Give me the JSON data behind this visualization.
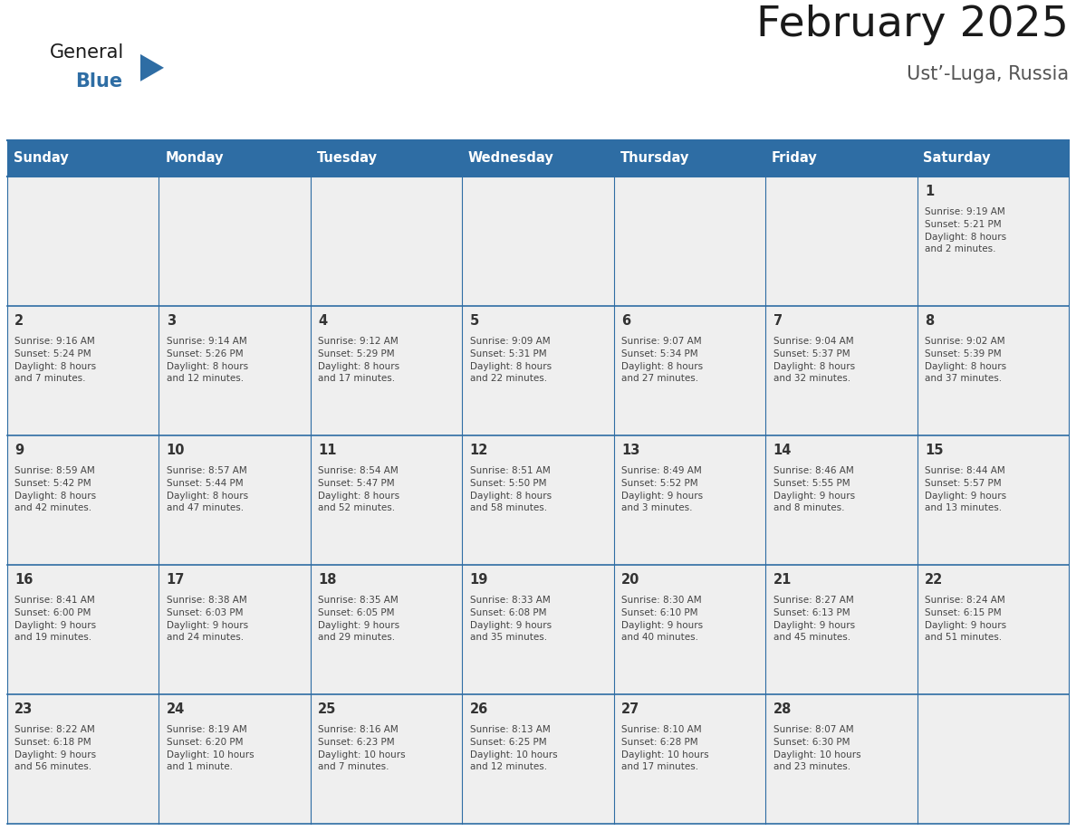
{
  "title": "February 2025",
  "subtitle": "Ust’-Luga, Russia",
  "header_bg": "#2e6da4",
  "header_text": "#ffffff",
  "cell_bg": "#efefef",
  "border_color": "#2e6da4",
  "text_color": "#333333",
  "info_color": "#444444",
  "days_of_week": [
    "Sunday",
    "Monday",
    "Tuesday",
    "Wednesday",
    "Thursday",
    "Friday",
    "Saturday"
  ],
  "weeks": [
    [
      {
        "day": null,
        "info": null
      },
      {
        "day": null,
        "info": null
      },
      {
        "day": null,
        "info": null
      },
      {
        "day": null,
        "info": null
      },
      {
        "day": null,
        "info": null
      },
      {
        "day": null,
        "info": null
      },
      {
        "day": 1,
        "info": "Sunrise: 9:19 AM\nSunset: 5:21 PM\nDaylight: 8 hours\nand 2 minutes."
      }
    ],
    [
      {
        "day": 2,
        "info": "Sunrise: 9:16 AM\nSunset: 5:24 PM\nDaylight: 8 hours\nand 7 minutes."
      },
      {
        "day": 3,
        "info": "Sunrise: 9:14 AM\nSunset: 5:26 PM\nDaylight: 8 hours\nand 12 minutes."
      },
      {
        "day": 4,
        "info": "Sunrise: 9:12 AM\nSunset: 5:29 PM\nDaylight: 8 hours\nand 17 minutes."
      },
      {
        "day": 5,
        "info": "Sunrise: 9:09 AM\nSunset: 5:31 PM\nDaylight: 8 hours\nand 22 minutes."
      },
      {
        "day": 6,
        "info": "Sunrise: 9:07 AM\nSunset: 5:34 PM\nDaylight: 8 hours\nand 27 minutes."
      },
      {
        "day": 7,
        "info": "Sunrise: 9:04 AM\nSunset: 5:37 PM\nDaylight: 8 hours\nand 32 minutes."
      },
      {
        "day": 8,
        "info": "Sunrise: 9:02 AM\nSunset: 5:39 PM\nDaylight: 8 hours\nand 37 minutes."
      }
    ],
    [
      {
        "day": 9,
        "info": "Sunrise: 8:59 AM\nSunset: 5:42 PM\nDaylight: 8 hours\nand 42 minutes."
      },
      {
        "day": 10,
        "info": "Sunrise: 8:57 AM\nSunset: 5:44 PM\nDaylight: 8 hours\nand 47 minutes."
      },
      {
        "day": 11,
        "info": "Sunrise: 8:54 AM\nSunset: 5:47 PM\nDaylight: 8 hours\nand 52 minutes."
      },
      {
        "day": 12,
        "info": "Sunrise: 8:51 AM\nSunset: 5:50 PM\nDaylight: 8 hours\nand 58 minutes."
      },
      {
        "day": 13,
        "info": "Sunrise: 8:49 AM\nSunset: 5:52 PM\nDaylight: 9 hours\nand 3 minutes."
      },
      {
        "day": 14,
        "info": "Sunrise: 8:46 AM\nSunset: 5:55 PM\nDaylight: 9 hours\nand 8 minutes."
      },
      {
        "day": 15,
        "info": "Sunrise: 8:44 AM\nSunset: 5:57 PM\nDaylight: 9 hours\nand 13 minutes."
      }
    ],
    [
      {
        "day": 16,
        "info": "Sunrise: 8:41 AM\nSunset: 6:00 PM\nDaylight: 9 hours\nand 19 minutes."
      },
      {
        "day": 17,
        "info": "Sunrise: 8:38 AM\nSunset: 6:03 PM\nDaylight: 9 hours\nand 24 minutes."
      },
      {
        "day": 18,
        "info": "Sunrise: 8:35 AM\nSunset: 6:05 PM\nDaylight: 9 hours\nand 29 minutes."
      },
      {
        "day": 19,
        "info": "Sunrise: 8:33 AM\nSunset: 6:08 PM\nDaylight: 9 hours\nand 35 minutes."
      },
      {
        "day": 20,
        "info": "Sunrise: 8:30 AM\nSunset: 6:10 PM\nDaylight: 9 hours\nand 40 minutes."
      },
      {
        "day": 21,
        "info": "Sunrise: 8:27 AM\nSunset: 6:13 PM\nDaylight: 9 hours\nand 45 minutes."
      },
      {
        "day": 22,
        "info": "Sunrise: 8:24 AM\nSunset: 6:15 PM\nDaylight: 9 hours\nand 51 minutes."
      }
    ],
    [
      {
        "day": 23,
        "info": "Sunrise: 8:22 AM\nSunset: 6:18 PM\nDaylight: 9 hours\nand 56 minutes."
      },
      {
        "day": 24,
        "info": "Sunrise: 8:19 AM\nSunset: 6:20 PM\nDaylight: 10 hours\nand 1 minute."
      },
      {
        "day": 25,
        "info": "Sunrise: 8:16 AM\nSunset: 6:23 PM\nDaylight: 10 hours\nand 7 minutes."
      },
      {
        "day": 26,
        "info": "Sunrise: 8:13 AM\nSunset: 6:25 PM\nDaylight: 10 hours\nand 12 minutes."
      },
      {
        "day": 27,
        "info": "Sunrise: 8:10 AM\nSunset: 6:28 PM\nDaylight: 10 hours\nand 17 minutes."
      },
      {
        "day": 28,
        "info": "Sunrise: 8:07 AM\nSunset: 6:30 PM\nDaylight: 10 hours\nand 23 minutes."
      },
      {
        "day": null,
        "info": null
      }
    ]
  ],
  "logo_general_color": "#1a1a1a",
  "logo_blue_color": "#2e6da4",
  "logo_triangle_color": "#2e6da4",
  "title_color": "#1a1a1a",
  "subtitle_color": "#555555"
}
